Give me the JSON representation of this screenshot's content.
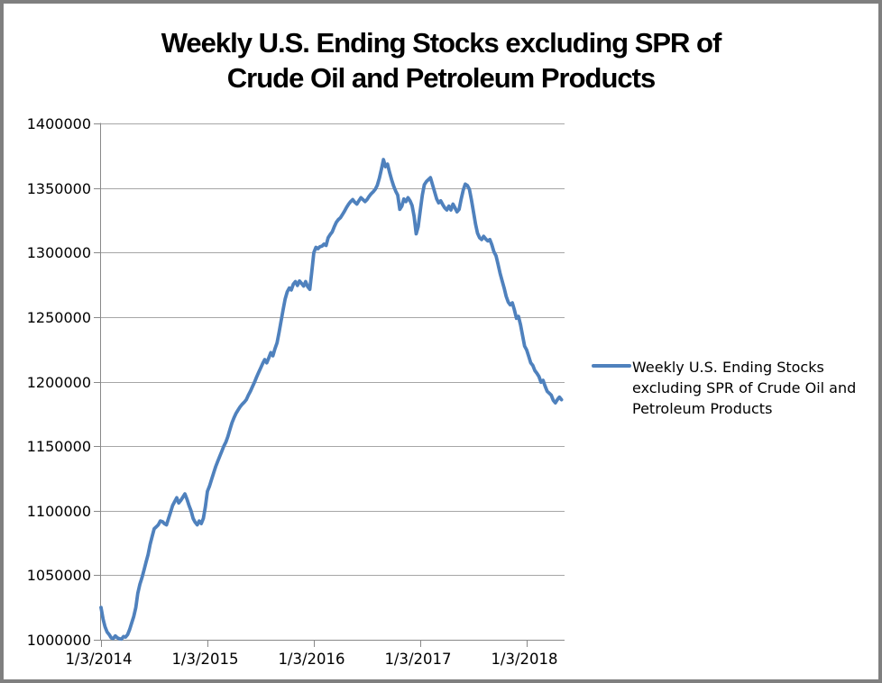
{
  "title": {
    "line1": "Weekly U.S. Ending Stocks excluding SPR of",
    "line2": "Crude Oil and Petroleum Products"
  },
  "legend": {
    "line1": "Weekly U.S. Ending Stocks",
    "line2": "excluding SPR of Crude Oil and",
    "line3": "Petroleum Products",
    "swatch": "line-swatch"
  },
  "colors": {
    "series_line": "#4F81BD",
    "gridline": "#A6A6A6",
    "axis": "#898989",
    "text": "#000000",
    "frame_border": "#7F7F7F"
  },
  "chart_data": {
    "type": "line",
    "title": "Weekly U.S. Ending Stocks excluding SPR of Crude Oil and Petroleum Products",
    "series_name": "Weekly U.S. Ending Stocks excluding SPR of Crude Oil and Petroleum Products",
    "xlabel": "",
    "ylabel": "",
    "grid": "horizontal-only",
    "legend_position": "right",
    "y_ticks": [
      1000000,
      1050000,
      1100000,
      1150000,
      1200000,
      1250000,
      1300000,
      1350000,
      1400000
    ],
    "ylim": [
      1000000,
      1400000
    ],
    "x_tick_labels": [
      "1/3/2014",
      "1/3/2015",
      "1/3/2016",
      "1/3/2017",
      "1/3/2018"
    ],
    "x_tick_weeks": [
      0,
      52,
      104,
      156,
      208
    ],
    "x_axis_total_weeks": 227,
    "x_unit": "week index from 1/3/2014",
    "values": [
      1025000,
      1016000,
      1010000,
      1006000,
      1004000,
      1001500,
      1001000,
      1003000,
      1001500,
      1000800,
      1000500,
      1002500,
      1002000,
      1004000,
      1008000,
      1013000,
      1018000,
      1025000,
      1036000,
      1043000,
      1048000,
      1054000,
      1060000,
      1066000,
      1074000,
      1080000,
      1086000,
      1087500,
      1089000,
      1092000,
      1091500,
      1090000,
      1089000,
      1094000,
      1099000,
      1104000,
      1107000,
      1110000,
      1106000,
      1108000,
      1110500,
      1113000,
      1109000,
      1104000,
      1100000,
      1094000,
      1091000,
      1089000,
      1092000,
      1090000,
      1094000,
      1103000,
      1115000,
      1119000,
      1124000,
      1129000,
      1134000,
      1138000,
      1142000,
      1146000,
      1150000,
      1153000,
      1157500,
      1163000,
      1168000,
      1172000,
      1175500,
      1178000,
      1180500,
      1182500,
      1184000,
      1186000,
      1189500,
      1192500,
      1196000,
      1199500,
      1203500,
      1207000,
      1210500,
      1214000,
      1217000,
      1214500,
      1218500,
      1222500,
      1220000,
      1225500,
      1230000,
      1238000,
      1247000,
      1256000,
      1264000,
      1269500,
      1272500,
      1271000,
      1275500,
      1277500,
      1274500,
      1278000,
      1276000,
      1274000,
      1277500,
      1273500,
      1271500,
      1285000,
      1300000,
      1304000,
      1303000,
      1304500,
      1305000,
      1306500,
      1305500,
      1311500,
      1314000,
      1316000,
      1320000,
      1323500,
      1325500,
      1327000,
      1329500,
      1332000,
      1335000,
      1337500,
      1339500,
      1341000,
      1339000,
      1337500,
      1340000,
      1342500,
      1341000,
      1339500,
      1341000,
      1343500,
      1345500,
      1347000,
      1349000,
      1352000,
      1357500,
      1364500,
      1372000,
      1366500,
      1368500,
      1362000,
      1356500,
      1351500,
      1347500,
      1344500,
      1333500,
      1336000,
      1341500,
      1339500,
      1342500,
      1340000,
      1336500,
      1328000,
      1314500,
      1320000,
      1332500,
      1344500,
      1352500,
      1355000,
      1356500,
      1358000,
      1352500,
      1347000,
      1341500,
      1338500,
      1340000,
      1337000,
      1334500,
      1333000,
      1336000,
      1333000,
      1337500,
      1334500,
      1331500,
      1333500,
      1341500,
      1348500,
      1353000,
      1352000,
      1349000,
      1341000,
      1331500,
      1322000,
      1315000,
      1311500,
      1310000,
      1312500,
      1310500,
      1309000,
      1310000,
      1306000,
      1300500,
      1297500,
      1291000,
      1284000,
      1278000,
      1272500,
      1266000,
      1261500,
      1259500,
      1261000,
      1255500,
      1249000,
      1250500,
      1244000,
      1235500,
      1227500,
      1224500,
      1219500,
      1214500,
      1212500,
      1208500,
      1206500,
      1204000,
      1199500,
      1201000,
      1196500,
      1192500,
      1191000,
      1189500,
      1185500,
      1183500,
      1186000,
      1188000,
      1186000
    ]
  }
}
